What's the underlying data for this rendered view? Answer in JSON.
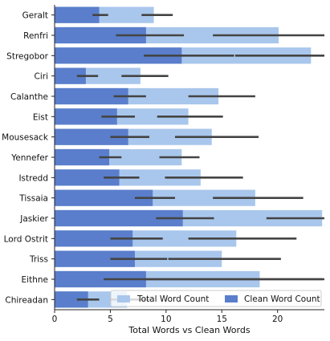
{
  "chart_data": {
    "type": "bar",
    "orientation": "horizontal",
    "categories": [
      "Geralt",
      "Renfri",
      "Stregobor",
      "Ciri",
      "Calanthe",
      "Eist",
      "Mousesack",
      "Yennefer",
      "Istredd",
      "Tissaia",
      "Jaskier",
      "Lord Ostrit",
      "Triss",
      "Eithne",
      "Chireadan"
    ],
    "series": [
      {
        "name": "Total Word Count",
        "color": "#a9c7ec",
        "values": [
          8.9,
          20.1,
          23.0,
          7.7,
          14.7,
          12.0,
          14.1,
          11.4,
          13.1,
          18.0,
          24.0,
          16.3,
          15.0,
          18.4,
          6.5
        ],
        "errors": [
          [
            7.8,
            10.6
          ],
          [
            14.2,
            24.5
          ],
          [
            16.2,
            24.5
          ],
          [
            6.0,
            10.2
          ],
          [
            12.0,
            18.0
          ],
          [
            9.2,
            15.1
          ],
          [
            10.8,
            18.3
          ],
          [
            9.4,
            13.0
          ],
          [
            9.9,
            16.9
          ],
          [
            14.2,
            22.3
          ],
          [
            19.0,
            24.5
          ],
          [
            12.0,
            21.7
          ],
          [
            10.2,
            20.3
          ],
          [
            8.0,
            24.5
          ],
          [
            5.0,
            8.6
          ]
        ]
      },
      {
        "name": "Clean Word Count",
        "color": "#5a7ecb",
        "values": [
          4.0,
          8.2,
          11.4,
          2.8,
          6.6,
          5.6,
          6.6,
          4.9,
          5.8,
          8.8,
          11.5,
          7.0,
          7.2,
          8.2,
          3.0
        ],
        "errors": [
          [
            3.4,
            4.8
          ],
          [
            5.5,
            11.6
          ],
          [
            8.0,
            16.1
          ],
          [
            2.0,
            3.9
          ],
          [
            5.3,
            8.2
          ],
          [
            4.2,
            7.2
          ],
          [
            5.0,
            8.5
          ],
          [
            4.0,
            6.0
          ],
          [
            4.4,
            7.6
          ],
          [
            7.2,
            10.8
          ],
          [
            9.1,
            14.3
          ],
          [
            5.0,
            9.7
          ],
          [
            5.0,
            10.1
          ],
          [
            4.4,
            24.0
          ],
          [
            2.0,
            4.0
          ]
        ]
      }
    ],
    "xlabel": "Total Words vs Clean Words",
    "ylabel": "",
    "xlim": [
      0,
      24.2
    ],
    "xticks": [
      0,
      5,
      10,
      15,
      20
    ],
    "grid": false,
    "legend_position": "bottom-right",
    "error_bar_color": "#444444"
  }
}
